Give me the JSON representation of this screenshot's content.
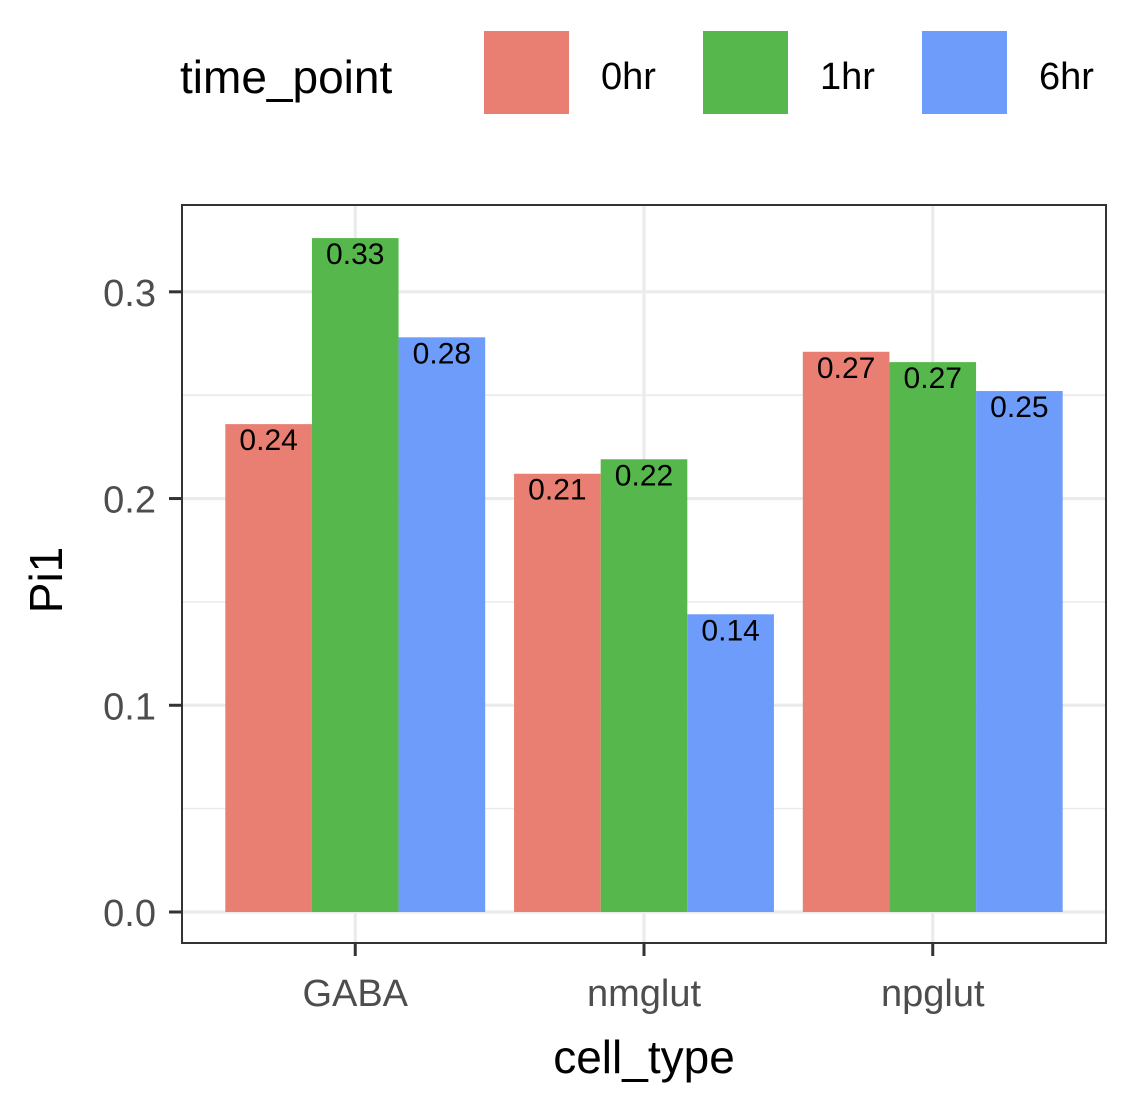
{
  "chart_data": {
    "type": "bar",
    "xlabel": "cell_type",
    "ylabel": "Pi1",
    "categories": [
      "GABA",
      "nmglut",
      "npglut"
    ],
    "series": [
      {
        "name": "0hr",
        "color": "#E87F72",
        "values": [
          0.236,
          0.212,
          0.271
        ],
        "labels": [
          "0.24",
          "0.21",
          "0.27"
        ]
      },
      {
        "name": "1hr",
        "color": "#56B84C",
        "values": [
          0.326,
          0.219,
          0.266
        ],
        "labels": [
          "0.33",
          "0.22",
          "0.27"
        ]
      },
      {
        "name": "6hr",
        "color": "#6E9CFA",
        "values": [
          0.278,
          0.144,
          0.252
        ],
        "labels": [
          "0.28",
          "0.14",
          "0.25"
        ]
      }
    ],
    "ylim": [
      -0.015,
      0.342
    ],
    "yticks": [
      0.0,
      0.1,
      0.2,
      0.3
    ],
    "ytick_labels": [
      "0.0",
      "0.1",
      "0.2",
      "0.3"
    ],
    "legend": {
      "title": "time_point",
      "position": "top"
    },
    "grid": true,
    "theme": "bw"
  }
}
